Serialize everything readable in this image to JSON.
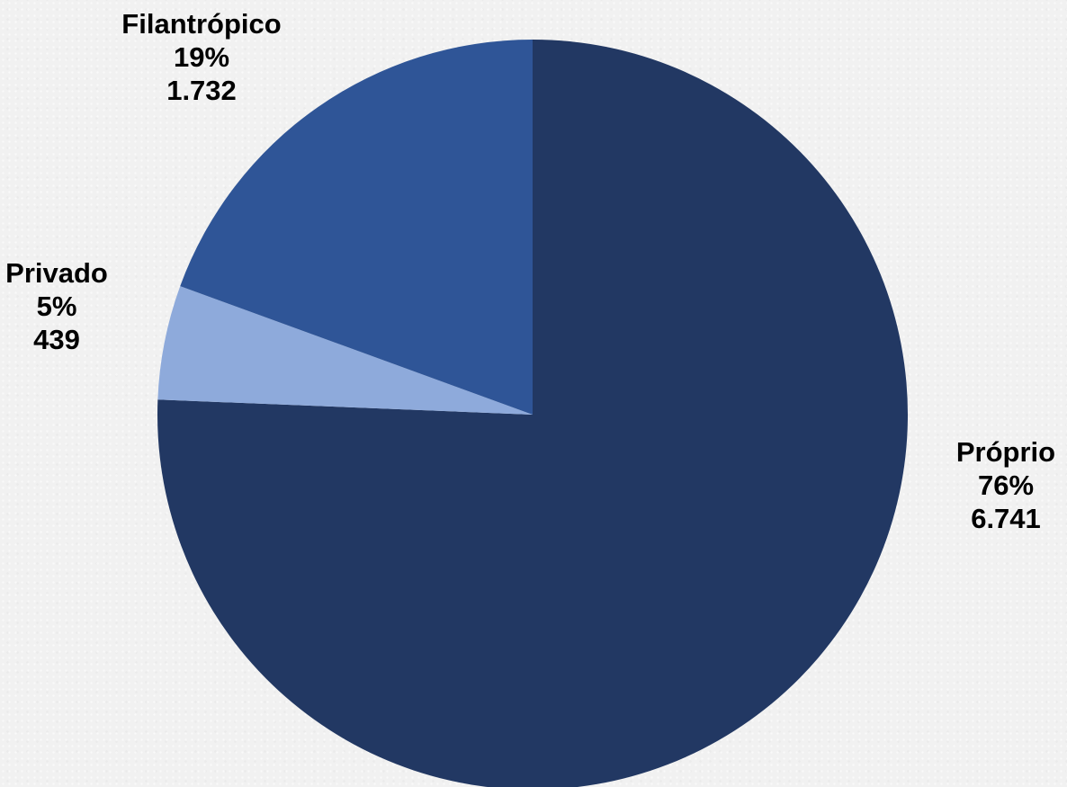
{
  "chart_data": {
    "type": "pie",
    "title": "",
    "slices": [
      {
        "name": "Próprio",
        "percent_label": "76%",
        "value_label": "6.741",
        "value": 6741,
        "color": "#223863"
      },
      {
        "name": "Privado",
        "percent_label": "5%",
        "value_label": "439",
        "value": 439,
        "color": "#8eaadb"
      },
      {
        "name": "Filantrópico",
        "percent_label": "19%",
        "value_label": "1.732",
        "value": 1732,
        "color": "#2f5597"
      }
    ],
    "start_angle_deg": 0,
    "direction": "clockwise",
    "legend": "none"
  }
}
